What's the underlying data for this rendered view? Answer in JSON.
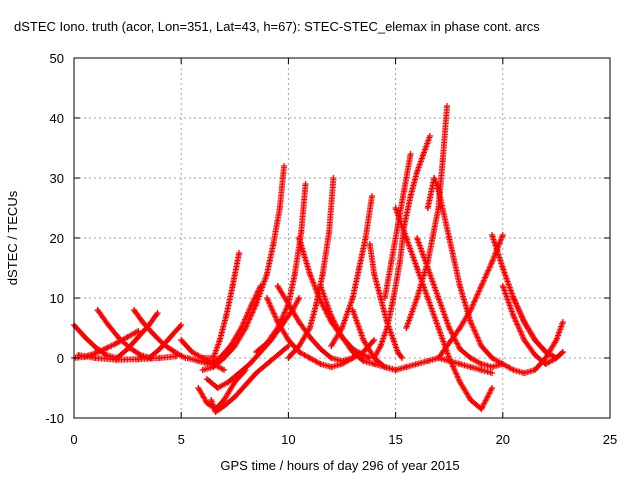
{
  "chart_data": {
    "type": "scatter",
    "title": "dSTEC Iono. truth (acor, Lon=351, Lat=43, h=67): STEC-STEC_elemax in phase cont. arcs",
    "xlabel": "GPS time / hours of day 296 of year 2015",
    "ylabel": "dSTEC  / TECUs",
    "xlim": [
      0,
      25
    ],
    "ylim": [
      -10,
      50
    ],
    "xticks": [
      0,
      5,
      10,
      15,
      20,
      25
    ],
    "yticks": [
      -10,
      0,
      10,
      20,
      30,
      40,
      50
    ],
    "grid": true,
    "marker": "+",
    "color": "#ff0000",
    "series": [
      {
        "x": [
          0.0,
          0.5,
          1.0,
          1.5,
          2.0
        ],
        "y": [
          5.5,
          3.5,
          1.8,
          0.5,
          0.0
        ]
      },
      {
        "x": [
          0.0,
          0.5,
          1.0,
          1.5,
          2.0,
          2.5,
          3.0
        ],
        "y": [
          0.0,
          0.2,
          0.8,
          1.6,
          2.5,
          3.5,
          4.5
        ]
      },
      {
        "x": [
          1.1,
          1.6,
          2.1,
          2.6,
          3.1,
          3.6
        ],
        "y": [
          8.0,
          5.5,
          3.3,
          1.7,
          0.5,
          0.0
        ]
      },
      {
        "x": [
          0.2,
          1.0,
          2.0,
          3.0,
          4.0,
          4.8
        ],
        "y": [
          0.5,
          0.0,
          -0.3,
          -0.2,
          0.0,
          0.3
        ]
      },
      {
        "x": [
          2.8,
          3.2,
          3.7,
          4.2,
          4.7,
          5.2
        ],
        "y": [
          8.0,
          6.0,
          4.0,
          2.2,
          1.0,
          0.0
        ]
      },
      {
        "x": [
          2.0,
          2.5,
          3.0,
          3.5,
          3.9
        ],
        "y": [
          0.0,
          1.5,
          3.5,
          5.5,
          7.5
        ]
      },
      {
        "x": [
          3.5,
          4.0,
          4.5,
          5.0
        ],
        "y": [
          0.0,
          1.5,
          3.5,
          5.5
        ]
      },
      {
        "x": [
          5.0,
          5.5,
          6.0,
          6.5,
          7.0
        ],
        "y": [
          3.0,
          1.0,
          0.0,
          -1.0,
          -2.0
        ]
      },
      {
        "x": [
          5.3,
          5.8,
          6.3,
          6.8,
          7.3,
          7.8,
          8.3,
          8.7
        ],
        "y": [
          0.0,
          -0.5,
          -1.0,
          0.0,
          2.0,
          5.0,
          9.0,
          12.0
        ]
      },
      {
        "x": [
          5.8,
          6.2,
          6.6,
          7.0,
          7.5,
          8.0
        ],
        "y": [
          -5.0,
          -7.5,
          -8.5,
          -7.0,
          -4.0,
          -2.0
        ]
      },
      {
        "x": [
          6.0,
          6.5,
          6.8,
          7.1,
          7.4,
          7.7
        ],
        "y": [
          0.0,
          0.0,
          3.0,
          7.0,
          12.0,
          17.5
        ]
      },
      {
        "x": [
          6.4,
          6.6,
          7.0,
          7.5,
          8.0,
          8.5,
          9.0,
          9.5,
          10.0
        ],
        "y": [
          -7.0,
          -9.0,
          -8.0,
          -6.5,
          -4.5,
          -2.5,
          -1.0,
          0.5,
          2.0
        ]
      },
      {
        "x": [
          6.0,
          6.5,
          7.0,
          7.5,
          8.0,
          8.5,
          9.0,
          9.3,
          9.6,
          9.8
        ],
        "y": [
          -2.0,
          -1.5,
          0.0,
          2.0,
          5.0,
          9.0,
          14.0,
          19.0,
          25.0,
          32.0
        ]
      },
      {
        "x": [
          6.2,
          6.7,
          7.2,
          7.7,
          8.2,
          8.7,
          9.2,
          9.7,
          10.2,
          10.5
        ],
        "y": [
          -3.5,
          -5.0,
          -4.0,
          -2.5,
          -1.0,
          1.0,
          3.0,
          5.5,
          8.0,
          10.0
        ]
      },
      {
        "x": [
          8.5,
          9.0,
          9.5,
          10.0,
          10.3,
          10.6,
          10.8
        ],
        "y": [
          1.0,
          2.5,
          5.0,
          9.0,
          14.0,
          21.0,
          29.0
        ]
      },
      {
        "x": [
          9.5,
          10.0,
          10.5,
          11.0,
          11.5,
          12.0,
          12.5,
          13.0,
          13.5,
          14.0
        ],
        "y": [
          12.0,
          9.0,
          6.0,
          3.5,
          1.5,
          0.0,
          -0.5,
          0.0,
          1.0,
          3.0
        ]
      },
      {
        "x": [
          10.5,
          11.0,
          11.5,
          12.0,
          12.5,
          13.0,
          13.5,
          13.8
        ],
        "y": [
          20.0,
          14.0,
          9.5,
          6.0,
          3.5,
          1.5,
          0.5,
          0.0
        ]
      },
      {
        "x": [
          9.0,
          9.5,
          10.0,
          10.5,
          11.0,
          11.5,
          12.0,
          12.5,
          13.0
        ],
        "y": [
          10.0,
          6.0,
          3.0,
          1.0,
          0.0,
          -1.0,
          -1.5,
          -1.0,
          0.0
        ]
      },
      {
        "x": [
          10.0,
          10.5,
          11.0,
          11.3,
          11.6,
          11.9,
          12.1
        ],
        "y": [
          0.0,
          2.0,
          5.0,
          9.0,
          14.0,
          21.0,
          30.0
        ]
      },
      {
        "x": [
          11.5,
          12.0,
          12.5,
          13.0,
          13.5,
          14.0,
          14.5,
          15.0
        ],
        "y": [
          12.0,
          7.0,
          3.5,
          1.0,
          -0.5,
          -1.0,
          -1.5,
          -2.0
        ]
      },
      {
        "x": [
          12.0,
          12.5,
          13.0,
          13.3,
          13.6,
          13.9
        ],
        "y": [
          2.0,
          5.0,
          10.0,
          15.0,
          20.0,
          27.0
        ]
      },
      {
        "x": [
          13.0,
          13.5,
          14.0,
          14.5,
          15.0,
          15.5,
          16.0,
          16.5,
          17.0,
          17.5,
          18.0,
          18.5,
          19.0,
          19.5
        ],
        "y": [
          8.0,
          3.0,
          0.0,
          -1.5,
          -2.0,
          -1.5,
          -1.0,
          -0.5,
          0.0,
          -0.5,
          -1.0,
          -1.5,
          -2.0,
          -2.5
        ]
      },
      {
        "x": [
          13.8,
          14.0,
          14.3,
          14.6,
          14.9,
          15.1,
          15.3
        ],
        "y": [
          19.0,
          14.0,
          10.0,
          6.0,
          3.0,
          1.0,
          0.0
        ]
      },
      {
        "x": [
          14.0,
          14.3,
          14.6,
          14.9,
          15.2,
          15.4,
          15.7,
          16.0,
          16.3,
          16.6
        ],
        "y": [
          0.0,
          2.0,
          5.0,
          10.0,
          16.0,
          22.0,
          27.0,
          31.0,
          34.0,
          37.0
        ]
      },
      {
        "x": [
          14.5,
          14.8,
          15.1,
          15.4,
          15.7
        ],
        "y": [
          10.0,
          16.0,
          22.0,
          28.0,
          34.0
        ]
      },
      {
        "x": [
          15.0,
          15.5,
          16.0,
          16.5,
          17.0,
          17.5,
          18.0,
          18.5,
          19.0,
          19.5
        ],
        "y": [
          25.0,
          20.0,
          15.0,
          10.0,
          5.0,
          0.0,
          -4.0,
          -7.0,
          -8.5,
          -5.0
        ]
      },
      {
        "x": [
          15.5,
          16.0,
          16.5,
          17.0,
          17.2,
          17.4
        ],
        "y": [
          5.0,
          10.0,
          16.0,
          25.0,
          33.0,
          42.0
        ]
      },
      {
        "x": [
          16.0,
          16.5,
          17.0,
          17.5,
          18.0,
          18.5,
          19.0,
          19.5,
          20.0
        ],
        "y": [
          20.0,
          15.0,
          10.0,
          5.0,
          1.5,
          0.0,
          -1.0,
          -1.5,
          -1.0
        ]
      },
      {
        "x": [
          16.5,
          16.8,
          17.0,
          17.5,
          18.0,
          18.5,
          19.0,
          19.5
        ],
        "y": [
          25.0,
          30.0,
          28.0,
          20.0,
          12.0,
          6.0,
          2.0,
          0.0
        ]
      },
      {
        "x": [
          17.0,
          17.5,
          18.0,
          18.5,
          19.0,
          19.5,
          20.0
        ],
        "y": [
          0.0,
          2.5,
          5.0,
          8.0,
          12.0,
          16.0,
          20.5
        ]
      },
      {
        "x": [
          19.5,
          20.0,
          20.5,
          21.0,
          21.5,
          22.0,
          22.5
        ],
        "y": [
          20.5,
          15.0,
          10.0,
          6.0,
          3.0,
          1.0,
          0.0
        ]
      },
      {
        "x": [
          20.0,
          20.5,
          21.0,
          21.5,
          22.0,
          22.5,
          22.8
        ],
        "y": [
          12.0,
          7.0,
          3.0,
          0.5,
          -1.0,
          0.0,
          1.0
        ]
      },
      {
        "x": [
          20.5,
          21.0,
          21.5,
          22.0,
          22.5,
          22.8
        ],
        "y": [
          10.0,
          6.0,
          3.0,
          1.0,
          0.0,
          1.0
        ]
      },
      {
        "x": [
          19.5,
          20.0,
          20.5,
          21.0,
          21.5,
          22.0,
          22.5,
          22.8
        ],
        "y": [
          0.0,
          -1.0,
          -2.0,
          -2.5,
          -2.0,
          0.0,
          3.0,
          6.0
        ]
      }
    ]
  }
}
